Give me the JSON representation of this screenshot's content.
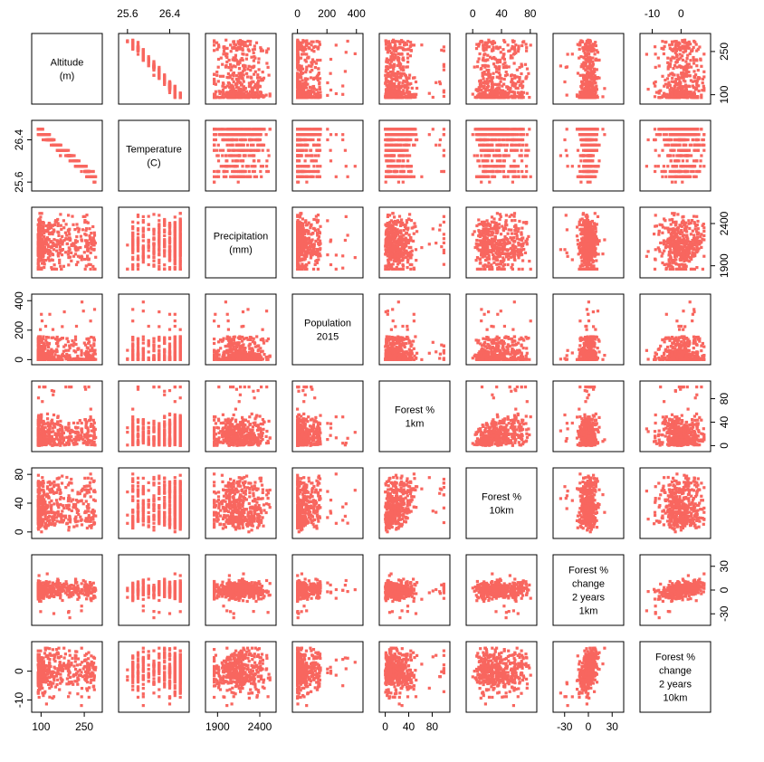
{
  "chart_data": {
    "type": "scatter",
    "subtype": "pairs-matrix",
    "point_color": "#f8665f",
    "variables": [
      {
        "key": "alt",
        "label": [
          "Altitude",
          "(m)"
        ],
        "range": [
          80,
          300
        ],
        "ticks": [
          100,
          250
        ]
      },
      {
        "key": "temp",
        "label": [
          "Temperature",
          "(C)"
        ],
        "range": [
          25.5,
          26.7
        ],
        "ticks": [
          25.6,
          26.4
        ]
      },
      {
        "key": "prec",
        "label": [
          "Precipitation",
          "(mm)"
        ],
        "range": [
          1800,
          2550
        ],
        "ticks": [
          1900,
          2400
        ]
      },
      {
        "key": "pop",
        "label": [
          "Population",
          "2015"
        ],
        "range": [
          -10,
          420
        ],
        "ticks": [
          0,
          200,
          400
        ]
      },
      {
        "key": "f1",
        "label": [
          "Forest %",
          "1km"
        ],
        "range": [
          -4,
          104
        ],
        "ticks": [
          0,
          40,
          80
        ]
      },
      {
        "key": "f10",
        "label": [
          "Forest %",
          "10km"
        ],
        "range": [
          -4,
          84
        ],
        "ticks": [
          0,
          40,
          80
        ]
      },
      {
        "key": "c1",
        "label": [
          "Forest %",
          "change",
          "2 years",
          "1km"
        ],
        "range": [
          -40,
          40
        ],
        "ticks": [
          -30,
          0,
          30
        ]
      },
      {
        "key": "c10",
        "label": [
          "Forest %",
          "change",
          "2 years",
          "10km"
        ],
        "range": [
          -13,
          9
        ],
        "ticks": [
          -10,
          0
        ]
      }
    ],
    "axes": {
      "top": {
        "columns": [
          1,
          3,
          5,
          7
        ]
      },
      "bottom": {
        "columns": [
          0,
          2,
          4,
          6
        ]
      },
      "left": {
        "rows": [
          1,
          3,
          5,
          7
        ]
      },
      "right": {
        "rows": [
          0,
          2,
          4,
          6
        ]
      }
    },
    "sample": {
      "n": 420,
      "note_fields": [
        "alt",
        "temp",
        "prec",
        "pop",
        "f1",
        "f10",
        "c1",
        "c10"
      ]
    },
    "title": "",
    "legend": "none",
    "grid": false
  }
}
